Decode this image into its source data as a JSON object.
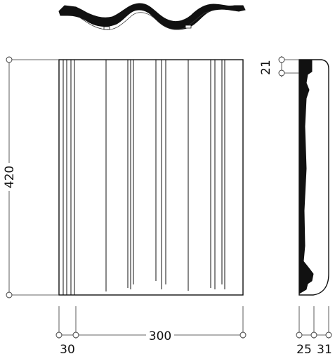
{
  "drawing": {
    "dimensions": {
      "height": "420",
      "width": "300",
      "offset_left": "30",
      "top_lip": "21",
      "profile_left": "25",
      "profile_right": "31"
    },
    "colors": {
      "ink": "#111111",
      "line": "#333333",
      "paper": "#ffffff"
    }
  }
}
